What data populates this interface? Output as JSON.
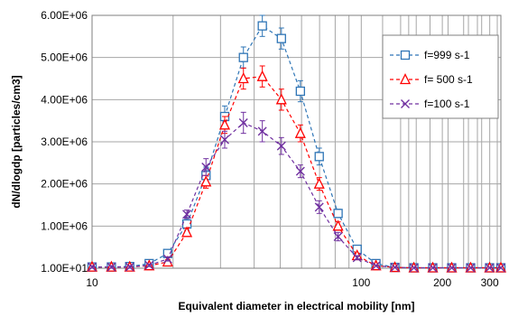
{
  "chart_data": {
    "type": "line",
    "xlabel": "Equivalent diameter in electrical mobility [nm]",
    "ylabel": "dN/dlogdp [particles/cm3]",
    "x_scale": "log",
    "xlim": [
      10,
      330
    ],
    "ylim": [
      10,
      6000000
    ],
    "x_tick_labels": [
      "10",
      "100",
      "200",
      "300"
    ],
    "x_tick_values": [
      10,
      100,
      200,
      300
    ],
    "y_tick_labels": [
      "1.00E+01",
      "1.00E+06",
      "2.00E+06",
      "3.00E+06",
      "4.00E+06",
      "5.00E+06",
      "6.00E+06"
    ],
    "y_tick_values": [
      10,
      1000000,
      2000000,
      3000000,
      4000000,
      5000000,
      6000000
    ],
    "grid": true,
    "legend_position": "top-right",
    "x": [
      10.0,
      11.8,
      13.8,
      16.3,
      19.1,
      22.5,
      26.5,
      31.1,
      36.5,
      42.9,
      50.5,
      59.4,
      69.8,
      82.0,
      96.5,
      113.4,
      133.3,
      156.8,
      184.3,
      216.7,
      254.8,
      299.6,
      330.0
    ],
    "series": [
      {
        "name": "f=999 s-1",
        "color": "#2e75b6",
        "marker": "square",
        "values": [
          30000,
          30000,
          40000,
          110000,
          350000,
          1050000,
          2200000,
          3600000,
          5000000,
          5750000,
          5450000,
          4200000,
          2650000,
          1300000,
          450000,
          110000,
          20000,
          10000,
          10000,
          10000,
          10000,
          10000,
          10000
        ],
        "errors": [
          30000,
          30000,
          30000,
          40000,
          60000,
          150000,
          200000,
          250000,
          250000,
          250000,
          250000,
          250000,
          200000,
          100000,
          50000,
          30000,
          20000,
          10000,
          10000,
          10000,
          10000,
          10000,
          10000
        ]
      },
      {
        "name": "f= 500 s-1",
        "color": "#ff0000",
        "marker": "triangle",
        "values": [
          30000,
          30000,
          30000,
          60000,
          150000,
          850000,
          2050000,
          3400000,
          4500000,
          4550000,
          4000000,
          3200000,
          2000000,
          1000000,
          300000,
          60000,
          20000,
          10000,
          10000,
          10000,
          10000,
          10000,
          10000
        ],
        "errors": [
          30000,
          30000,
          30000,
          30000,
          50000,
          100000,
          150000,
          200000,
          250000,
          250000,
          250000,
          200000,
          150000,
          100000,
          50000,
          20000,
          10000,
          10000,
          10000,
          10000,
          10000,
          10000,
          10000
        ]
      },
      {
        "name": "f=100 s-1",
        "color": "#7030a0",
        "marker": "x",
        "values": [
          30000,
          30000,
          30000,
          70000,
          220000,
          1280000,
          2400000,
          3050000,
          3450000,
          3250000,
          2900000,
          2300000,
          1450000,
          750000,
          250000,
          60000,
          20000,
          10000,
          10000,
          10000,
          10000,
          10000,
          10000
        ],
        "errors": [
          30000,
          30000,
          30000,
          30000,
          50000,
          100000,
          200000,
          200000,
          250000,
          250000,
          200000,
          150000,
          150000,
          100000,
          50000,
          20000,
          10000,
          10000,
          10000,
          10000,
          10000,
          10000,
          10000
        ]
      }
    ]
  }
}
